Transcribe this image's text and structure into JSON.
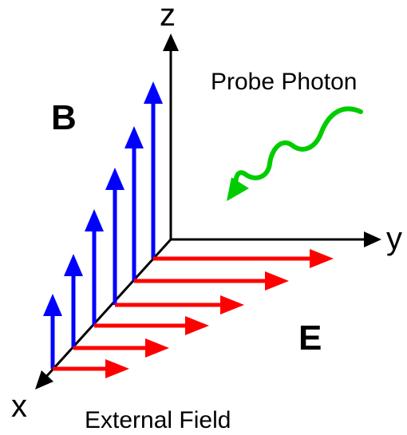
{
  "labels": {
    "z_axis": "z",
    "y_axis": "y",
    "x_axis": "x",
    "b_field": "B",
    "e_field": "E",
    "probe": "Probe Photon",
    "caption": "External Field"
  },
  "colors": {
    "axes": "#000000",
    "b_vectors": "#0000ff",
    "e_vectors": "#ff0000",
    "photon": "#00cc00"
  }
}
